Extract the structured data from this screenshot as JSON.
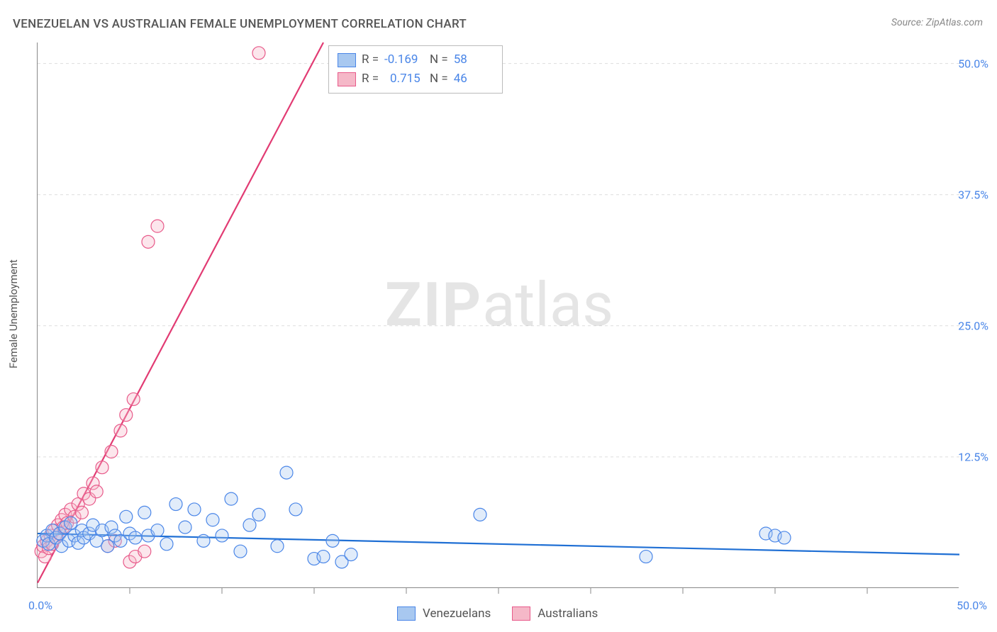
{
  "title": "VENEZUELAN VS AUSTRALIAN FEMALE UNEMPLOYMENT CORRELATION CHART",
  "source": "Source: ZipAtlas.com",
  "y_axis_label": "Female Unemployment",
  "watermark_zip": "ZIP",
  "watermark_atlas": "atlas",
  "chart": {
    "type": "scatter",
    "background_color": "#ffffff",
    "grid_color": "#dddddd",
    "axis_color": "#888888",
    "xlim": [
      0,
      50
    ],
    "ylim": [
      0,
      52
    ],
    "x_ticks_major": [
      0,
      50
    ],
    "x_ticks_minor": [
      5,
      10,
      15,
      20,
      25,
      30,
      35,
      40,
      45
    ],
    "y_ticks": [
      12.5,
      25.0,
      37.5,
      50.0
    ],
    "x_tick_labels": [
      "0.0%",
      "50.0%"
    ],
    "y_tick_labels": [
      "12.5%",
      "25.0%",
      "37.5%",
      "50.0%"
    ],
    "tick_label_color": "#4a86e8",
    "tick_label_fontsize": 16,
    "axis_label_fontsize": 15,
    "title_fontsize": 17,
    "marker_radius": 9,
    "marker_stroke_width": 1.2,
    "marker_fill_opacity": 0.35,
    "trend_line_width": 2.2
  },
  "series": {
    "venezuelans": {
      "label": "Venezuelans",
      "color_fill": "#a8c8f0",
      "color_stroke": "#4a86e8",
      "trend_color": "#1f6fd4",
      "R": "-0.169",
      "N": "58",
      "trend": {
        "x1": 0,
        "y1": 5.2,
        "x2": 50,
        "y2": 3.2
      },
      "points": [
        [
          0.3,
          4.5
        ],
        [
          0.5,
          5.0
        ],
        [
          0.6,
          4.2
        ],
        [
          0.8,
          5.5
        ],
        [
          1.0,
          4.8
        ],
        [
          1.2,
          5.2
        ],
        [
          1.3,
          4.0
        ],
        [
          1.5,
          5.8
        ],
        [
          1.7,
          4.5
        ],
        [
          1.8,
          6.2
        ],
        [
          2.0,
          5.0
        ],
        [
          2.2,
          4.3
        ],
        [
          2.4,
          5.5
        ],
        [
          2.5,
          4.8
        ],
        [
          2.8,
          5.2
        ],
        [
          3.0,
          6.0
        ],
        [
          3.2,
          4.5
        ],
        [
          3.5,
          5.5
        ],
        [
          3.8,
          4.0
        ],
        [
          4.0,
          5.8
        ],
        [
          4.2,
          5.0
        ],
        [
          4.5,
          4.5
        ],
        [
          4.8,
          6.8
        ],
        [
          5.0,
          5.2
        ],
        [
          5.3,
          4.8
        ],
        [
          5.8,
          7.2
        ],
        [
          6.0,
          5.0
        ],
        [
          6.5,
          5.5
        ],
        [
          7.0,
          4.2
        ],
        [
          7.5,
          8.0
        ],
        [
          8.0,
          5.8
        ],
        [
          8.5,
          7.5
        ],
        [
          9.0,
          4.5
        ],
        [
          9.5,
          6.5
        ],
        [
          10.0,
          5.0
        ],
        [
          10.5,
          8.5
        ],
        [
          11.0,
          3.5
        ],
        [
          11.5,
          6.0
        ],
        [
          12.0,
          7.0
        ],
        [
          13.0,
          4.0
        ],
        [
          13.5,
          11.0
        ],
        [
          14.0,
          7.5
        ],
        [
          15.0,
          2.8
        ],
        [
          15.5,
          3.0
        ],
        [
          16.0,
          4.5
        ],
        [
          16.5,
          2.5
        ],
        [
          17.0,
          3.2
        ],
        [
          24.0,
          7.0
        ],
        [
          33.0,
          3.0
        ],
        [
          39.5,
          5.2
        ],
        [
          40.0,
          5.0
        ],
        [
          40.5,
          4.8
        ]
      ]
    },
    "australians": {
      "label": "Australians",
      "color_fill": "#f5b8c8",
      "color_stroke": "#e85a8a",
      "trend_color": "#e23b73",
      "R": "0.715",
      "N": "46",
      "trend": {
        "x1": 0,
        "y1": 0.5,
        "x2": 15.5,
        "y2": 52
      },
      "points": [
        [
          0.2,
          3.5
        ],
        [
          0.3,
          4.0
        ],
        [
          0.4,
          3.0
        ],
        [
          0.5,
          4.5
        ],
        [
          0.6,
          3.8
        ],
        [
          0.7,
          5.0
        ],
        [
          0.8,
          4.2
        ],
        [
          0.9,
          5.5
        ],
        [
          1.0,
          4.8
        ],
        [
          1.1,
          6.0
        ],
        [
          1.2,
          5.2
        ],
        [
          1.3,
          6.5
        ],
        [
          1.4,
          5.8
        ],
        [
          1.5,
          7.0
        ],
        [
          1.6,
          6.2
        ],
        [
          1.8,
          7.5
        ],
        [
          2.0,
          6.8
        ],
        [
          2.2,
          8.0
        ],
        [
          2.4,
          7.2
        ],
        [
          2.5,
          9.0
        ],
        [
          2.8,
          8.5
        ],
        [
          3.0,
          10.0
        ],
        [
          3.2,
          9.2
        ],
        [
          3.5,
          11.5
        ],
        [
          3.8,
          4.0
        ],
        [
          4.0,
          13.0
        ],
        [
          4.2,
          4.5
        ],
        [
          4.5,
          15.0
        ],
        [
          4.8,
          16.5
        ],
        [
          5.0,
          2.5
        ],
        [
          5.2,
          18.0
        ],
        [
          5.3,
          3.0
        ],
        [
          5.8,
          3.5
        ],
        [
          6.0,
          33.0
        ],
        [
          6.5,
          34.5
        ],
        [
          12.0,
          51.0
        ]
      ]
    }
  },
  "legend_top": {
    "r_label": "R =",
    "n_label": "N ="
  },
  "legend_bottom": {
    "items": [
      "venezuelans",
      "australians"
    ]
  }
}
